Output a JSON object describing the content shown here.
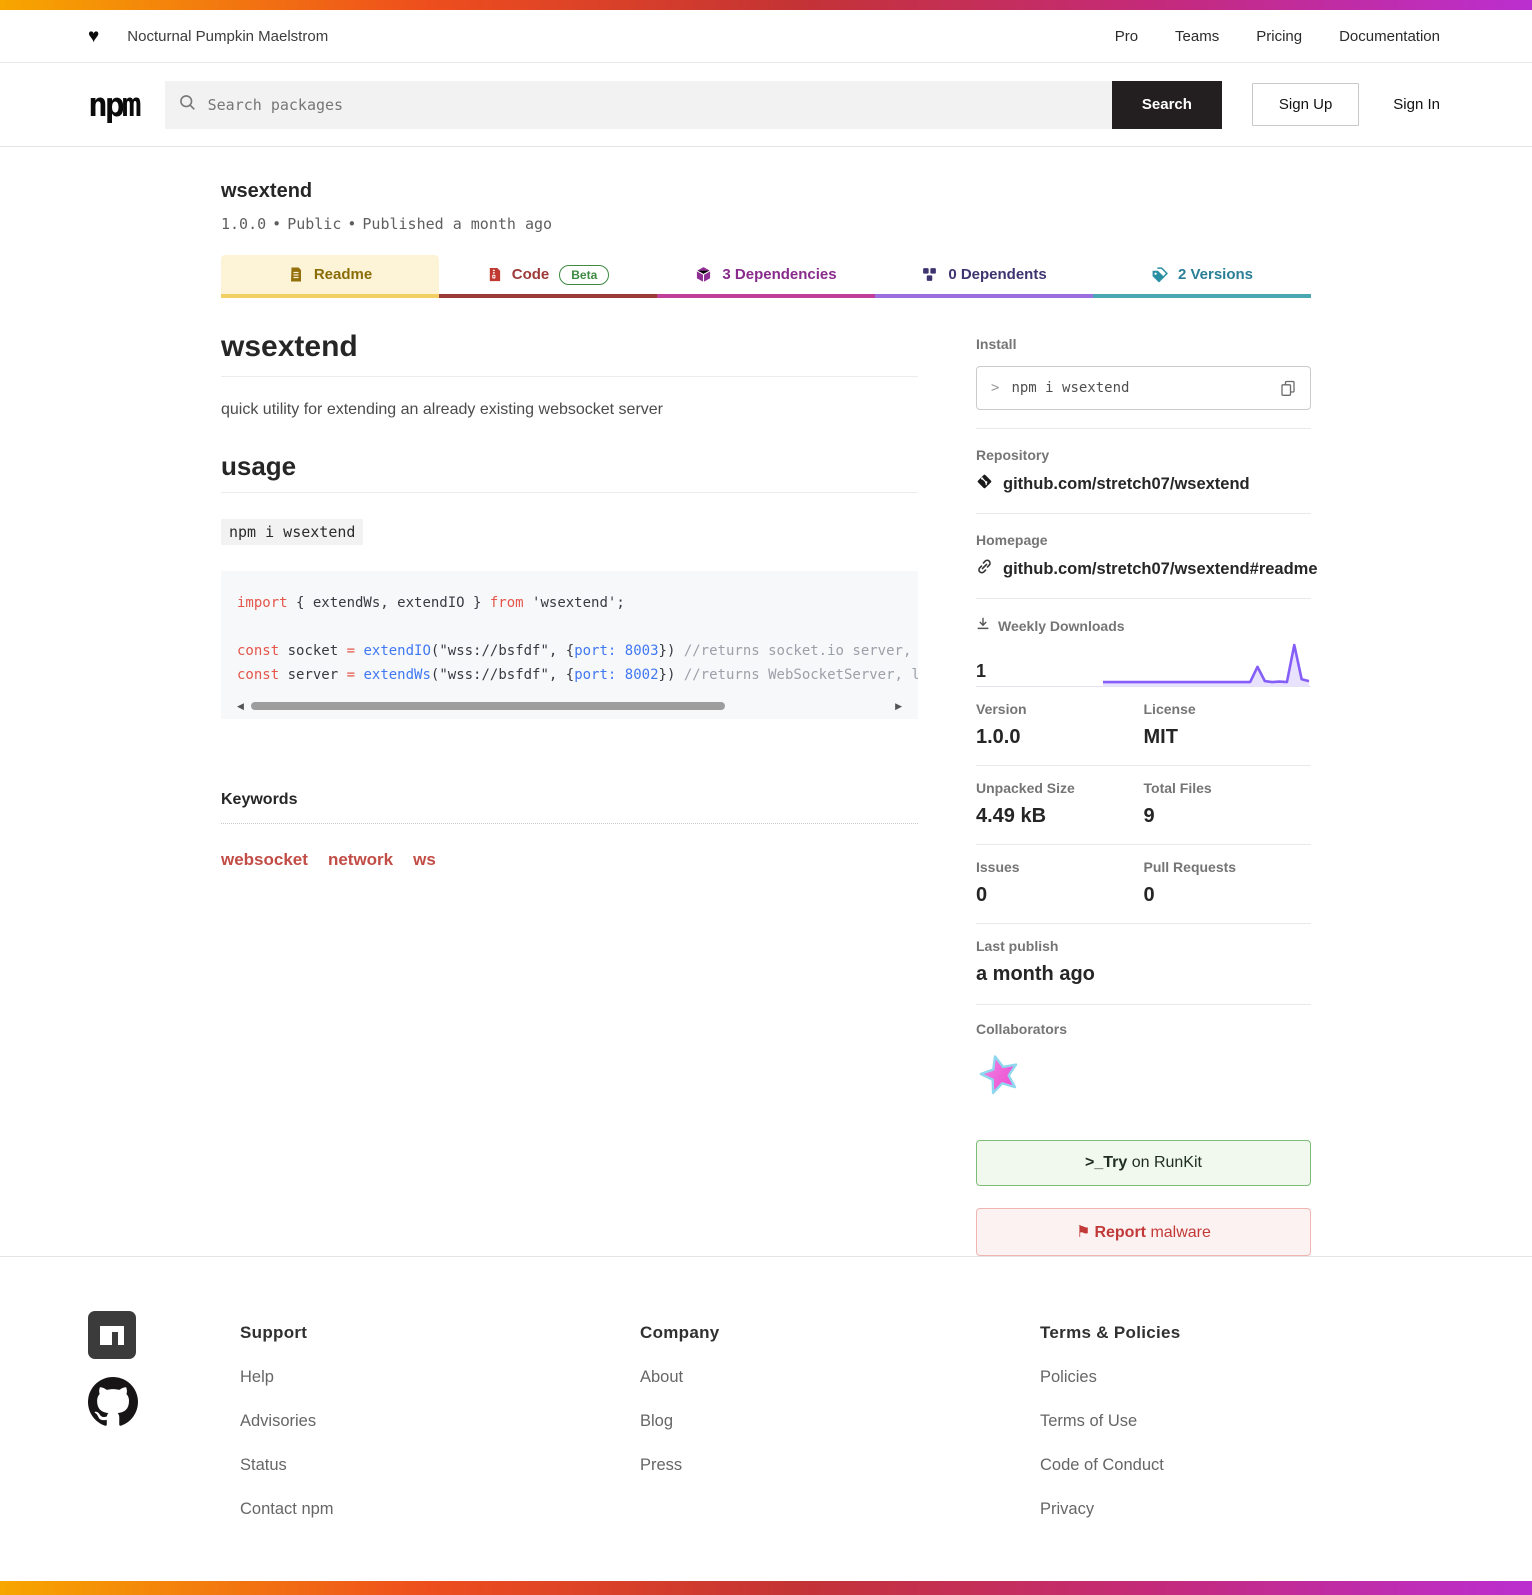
{
  "icons": {
    "heart": "♥",
    "prompt": ">",
    "flag": "⚑"
  },
  "colors": {
    "gradient": [
      "#f7a600",
      "#ee4e1d",
      "#c43335",
      "#c42a7c",
      "#bb2fd0"
    ],
    "tab_underlines": [
      "#f2cf63",
      "#9a3a36",
      "#c13f9b",
      "#9b6fe0",
      "#4ba7b3"
    ],
    "sparkline": "#845ef7",
    "search_button_bg": "#231f20",
    "keyword_link": "#c24c46"
  },
  "banner": {
    "org": "Nocturnal Pumpkin Maelstrom",
    "nav": [
      "Pro",
      "Teams",
      "Pricing",
      "Documentation"
    ]
  },
  "header": {
    "logo": "npm",
    "search_placeholder": "Search packages",
    "search_button": "Search",
    "sign_up": "Sign Up",
    "sign_in": "Sign In"
  },
  "package": {
    "name": "wsextend",
    "version": "1.0.0",
    "separator": "•",
    "visibility": "Public",
    "published": "Published a month ago"
  },
  "tabs": [
    {
      "label": "Readme"
    },
    {
      "label": "Code",
      "badge": "Beta"
    },
    {
      "label": "3 Dependencies"
    },
    {
      "label": "0 Dependents"
    },
    {
      "label": "2 Versions"
    }
  ],
  "readme": {
    "title": "wsextend",
    "description": "quick utility for extending an already existing websocket server",
    "usage_heading": "usage",
    "install_snippet": "npm i wsextend",
    "code": {
      "lines": [
        [
          [
            "k",
            "import"
          ],
          [
            "p",
            " { extendWs, extendIO } "
          ],
          [
            "k",
            "from"
          ],
          [
            "p",
            " "
          ],
          [
            "s",
            "'wsextend'"
          ],
          [
            "p",
            ";"
          ]
        ],
        [],
        [
          [
            "k",
            "const"
          ],
          [
            "p",
            " socket "
          ],
          [
            "k",
            "="
          ],
          [
            "p",
            " "
          ],
          [
            "f",
            "extendIO"
          ],
          [
            "p",
            "(\"wss://bsfdf\", {"
          ],
          [
            "f",
            "port:"
          ],
          [
            "p",
            " "
          ],
          [
            "n",
            "8003"
          ],
          [
            "p",
            "}) "
          ],
          [
            "c",
            "//returns socket.io server, l"
          ]
        ],
        [
          [
            "k",
            "const"
          ],
          [
            "p",
            " server "
          ],
          [
            "k",
            "="
          ],
          [
            "p",
            " "
          ],
          [
            "f",
            "extendWs"
          ],
          [
            "p",
            "(\"wss://bsfdf\", {"
          ],
          [
            "f",
            "port:"
          ],
          [
            "p",
            " "
          ],
          [
            "n",
            "8002"
          ],
          [
            "p",
            "}) "
          ],
          [
            "c",
            "//returns WebSocketServer, li"
          ]
        ]
      ]
    }
  },
  "keywords": {
    "heading": "Keywords",
    "items": [
      "websocket",
      "network",
      "ws"
    ]
  },
  "sidebar": {
    "install": {
      "label": "Install",
      "prompt": ">",
      "command": "npm i wsextend"
    },
    "repository": {
      "label": "Repository",
      "link": "github.com/stretch07/wsextend"
    },
    "homepage": {
      "label": "Homepage",
      "link": "github.com/stretch07/wsextend#readme"
    },
    "weekly_downloads": {
      "label": "Weekly Downloads",
      "value": "1",
      "sparkline": [
        1,
        1,
        1,
        1,
        1,
        1,
        1,
        1,
        1,
        1,
        1,
        1,
        1,
        1,
        1,
        1,
        1,
        1,
        1,
        1,
        1,
        17,
        2,
        1,
        1.5,
        1,
        40,
        4,
        2
      ]
    },
    "stats": [
      {
        "label": "Version",
        "value": "1.0.0"
      },
      {
        "label": "License",
        "value": "MIT"
      },
      {
        "label": "Unpacked Size",
        "value": "4.49 kB"
      },
      {
        "label": "Total Files",
        "value": "9"
      },
      {
        "label": "Issues",
        "value": "0"
      },
      {
        "label": "Pull Requests",
        "value": "0"
      }
    ],
    "last_publish": {
      "label": "Last publish",
      "value": "a month ago"
    },
    "collaborators": {
      "label": "Collaborators"
    },
    "runkit_button": {
      "bold": ">_Try",
      "rest": " on RunKit"
    },
    "report_button": {
      "bold": "Report",
      "rest": " malware"
    }
  },
  "footer": {
    "columns": [
      {
        "heading": "Support",
        "links": [
          "Help",
          "Advisories",
          "Status",
          "Contact npm"
        ]
      },
      {
        "heading": "Company",
        "links": [
          "About",
          "Blog",
          "Press"
        ]
      },
      {
        "heading": "Terms & Policies",
        "links": [
          "Policies",
          "Terms of Use",
          "Code of Conduct",
          "Privacy"
        ]
      }
    ]
  }
}
